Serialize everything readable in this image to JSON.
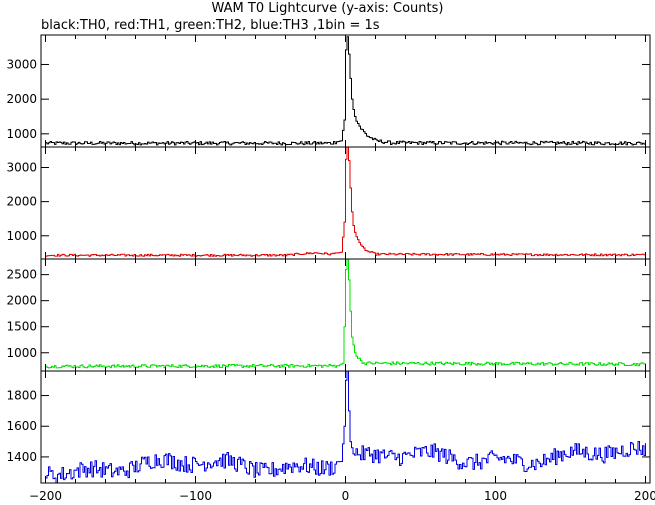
{
  "chart_data": {
    "type": "line",
    "title": "WAM T0 Lightcurve (y-axis: Counts)",
    "subtitle": "black:TH0, red:TH1, green:TH2, blue:TH3 ,1bin = 1s",
    "xlim": [
      -203,
      203
    ],
    "xticks": [
      -200,
      -100,
      0,
      100,
      200
    ],
    "grid": false,
    "legend": "none",
    "panels": [
      {
        "series": "TH0",
        "color": "#000000",
        "ylim": [
          620,
          3850
        ],
        "yticks": [
          1000,
          2000,
          3000
        ],
        "baseline": 730,
        "noise": 50,
        "drift": 0,
        "peak": 3800,
        "profile": [
          [
            -200,
            730
          ],
          [
            -10,
            730
          ],
          [
            -3,
            800
          ],
          [
            -1,
            1400
          ],
          [
            0,
            3200
          ],
          [
            1,
            3800
          ],
          [
            2,
            3300
          ],
          [
            3,
            2600
          ],
          [
            4,
            2000
          ],
          [
            5,
            1700
          ],
          [
            6,
            1500
          ],
          [
            8,
            1300
          ],
          [
            10,
            1150
          ],
          [
            14,
            950
          ],
          [
            20,
            800
          ],
          [
            30,
            740
          ],
          [
            200,
            730
          ]
        ]
      },
      {
        "series": "TH1",
        "color": "#e00000",
        "ylim": [
          320,
          3600
        ],
        "yticks": [
          1000,
          2000,
          3000
        ],
        "baseline": 430,
        "noise": 30,
        "drift": 0,
        "peak": 3600,
        "profile": [
          [
            -200,
            430
          ],
          [
            -40,
            430
          ],
          [
            -30,
            470
          ],
          [
            -20,
            500
          ],
          [
            -10,
            460
          ],
          [
            -3,
            520
          ],
          [
            -1,
            1400
          ],
          [
            0,
            3000
          ],
          [
            1,
            3600
          ],
          [
            2,
            3200
          ],
          [
            3,
            2400
          ],
          [
            4,
            1700
          ],
          [
            5,
            1300
          ],
          [
            6,
            1100
          ],
          [
            8,
            900
          ],
          [
            10,
            700
          ],
          [
            14,
            550
          ],
          [
            20,
            460
          ],
          [
            200,
            440
          ]
        ]
      },
      {
        "series": "TH2",
        "color": "#00e000",
        "ylim": [
          650,
          2800
        ],
        "yticks": [
          1000,
          1500,
          2000,
          2500
        ],
        "baseline": 750,
        "noise": 30,
        "drift": 0,
        "peak": 2800,
        "profile": [
          [
            -200,
            740
          ],
          [
            -5,
            750
          ],
          [
            -2,
            800
          ],
          [
            -1,
            1500
          ],
          [
            0,
            2600
          ],
          [
            1,
            2800
          ],
          [
            2,
            2400
          ],
          [
            3,
            1800
          ],
          [
            4,
            1300
          ],
          [
            6,
            1000
          ],
          [
            8,
            900
          ],
          [
            12,
            800
          ],
          [
            200,
            780
          ]
        ]
      },
      {
        "series": "TH3",
        "color": "#0000e0",
        "ylim": [
          1230,
          1960
        ],
        "yticks": [
          1400,
          1600,
          1800
        ],
        "baseline": 1340,
        "noise": 55,
        "drift": 1,
        "peak": 1960,
        "profile": [
          [
            -200,
            1330
          ],
          [
            -100,
            1340
          ],
          [
            -50,
            1350
          ],
          [
            -3,
            1370
          ],
          [
            -1,
            1600
          ],
          [
            0,
            1900
          ],
          [
            1,
            1950
          ],
          [
            2,
            1700
          ],
          [
            3,
            1500
          ],
          [
            5,
            1420
          ],
          [
            10,
            1380
          ],
          [
            100,
            1400
          ],
          [
            200,
            1410
          ]
        ]
      }
    ]
  }
}
